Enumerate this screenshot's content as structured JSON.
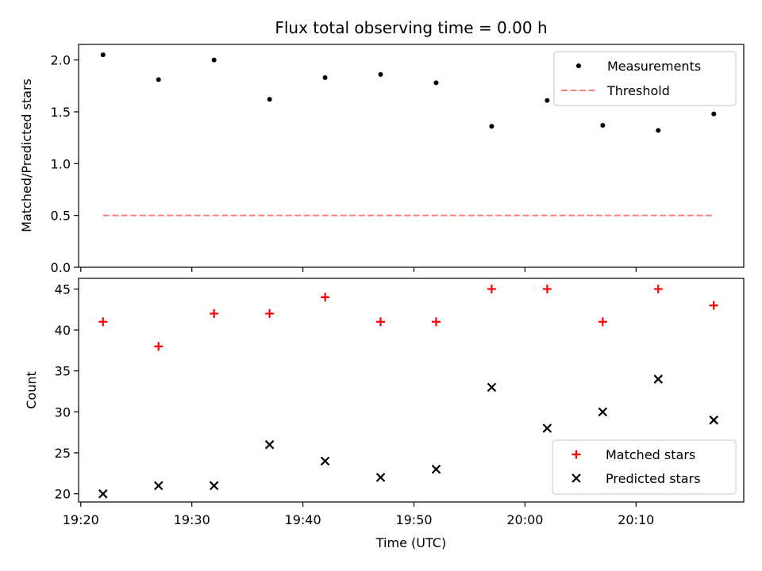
{
  "chart_data": {
    "title": "Flux total observing time = 0.00 h",
    "xlabel": "Time (UTC)",
    "x_tick_labels": [
      "19:20",
      "19:30",
      "19:40",
      "19:50",
      "20:00",
      "20:10"
    ],
    "x_tick_minutes": [
      1160,
      1170,
      1180,
      1190,
      1200,
      1210
    ],
    "x_times": [
      "19:22",
      "19:27",
      "19:32",
      "19:37",
      "19:42",
      "19:47",
      "19:52",
      "19:57",
      "20:02",
      "20:07",
      "20:12",
      "20:17"
    ],
    "x_minutes": [
      1162,
      1167,
      1172,
      1177,
      1182,
      1187,
      1192,
      1197,
      1202,
      1207,
      1212,
      1217
    ],
    "xlim_minutes": [
      1159.8,
      1219.7
    ],
    "panels": [
      {
        "type": "scatter",
        "ylabel": "Matched/Predicted stars",
        "ylim": [
          0.0,
          2.15
        ],
        "yticks": [
          0.0,
          0.5,
          1.0,
          1.5,
          2.0
        ],
        "ytick_labels": [
          "0.0",
          "0.5",
          "1.0",
          "1.5",
          "2.0"
        ],
        "series": [
          {
            "name": "Measurements",
            "kind": "points",
            "color": "#000000",
            "values": [
              2.05,
              1.81,
              2.0,
              1.62,
              1.83,
              1.86,
              1.78,
              1.36,
              1.61,
              1.37,
              1.32,
              1.48
            ]
          },
          {
            "name": "Threshold",
            "kind": "dashed-line",
            "color": "#ff7f7f",
            "value": 0.5,
            "x_range_minutes": [
              1162,
              1217
            ]
          }
        ],
        "legend": "top-right"
      },
      {
        "type": "scatter",
        "ylabel": "Count",
        "ylim": [
          19.0,
          46.3
        ],
        "yticks": [
          20,
          25,
          30,
          35,
          40,
          45
        ],
        "ytick_labels": [
          "20",
          "25",
          "30",
          "35",
          "40",
          "45"
        ],
        "series": [
          {
            "name": "Matched stars",
            "marker": "plus",
            "color": "#ff0000",
            "values": [
              41,
              38,
              42,
              42,
              44,
              41,
              41,
              45,
              45,
              41,
              45,
              43
            ]
          },
          {
            "name": "Predicted stars",
            "marker": "x",
            "color": "#000000",
            "values": [
              20,
              21,
              21,
              26,
              24,
              22,
              23,
              33,
              28,
              30,
              34,
              29
            ]
          }
        ],
        "legend": "bottom-right"
      }
    ]
  }
}
